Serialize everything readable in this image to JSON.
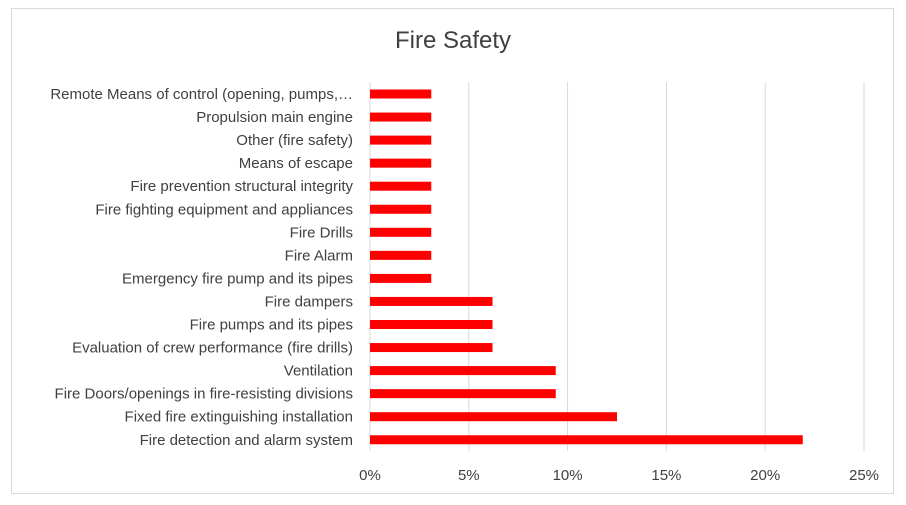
{
  "chart_data": {
    "type": "bar",
    "orientation": "horizontal",
    "title": "Fire Safety",
    "categories": [
      "Remote Means of control (opening, pumps,…",
      "Propulsion main engine",
      "Other (fire safety)",
      "Means of escape",
      "Fire prevention structural integrity",
      "Fire fighting equipment and appliances",
      "Fire Drills",
      "Fire Alarm",
      "Emergency fire pump and its pipes",
      "Fire dampers",
      "Fire pumps and its pipes",
      "Evaluation of crew performance (fire drills)",
      "Ventilation",
      "Fire Doors/openings in fire-resisting divisions",
      "Fixed fire extinguishing installation",
      "Fire detection and alarm system"
    ],
    "values": [
      3.1,
      3.1,
      3.1,
      3.1,
      3.1,
      3.1,
      3.1,
      3.1,
      3.1,
      6.2,
      6.2,
      6.2,
      9.4,
      9.4,
      12.5,
      21.9
    ],
    "xlim": [
      0,
      25
    ],
    "xticks": [
      "0%",
      "5%",
      "10%",
      "15%",
      "20%",
      "25%"
    ],
    "xtick_values": [
      0,
      5,
      10,
      15,
      20,
      25
    ],
    "grid": "vertical",
    "bar_color": "#ff0000",
    "grid_color": "#d9d9d9"
  }
}
